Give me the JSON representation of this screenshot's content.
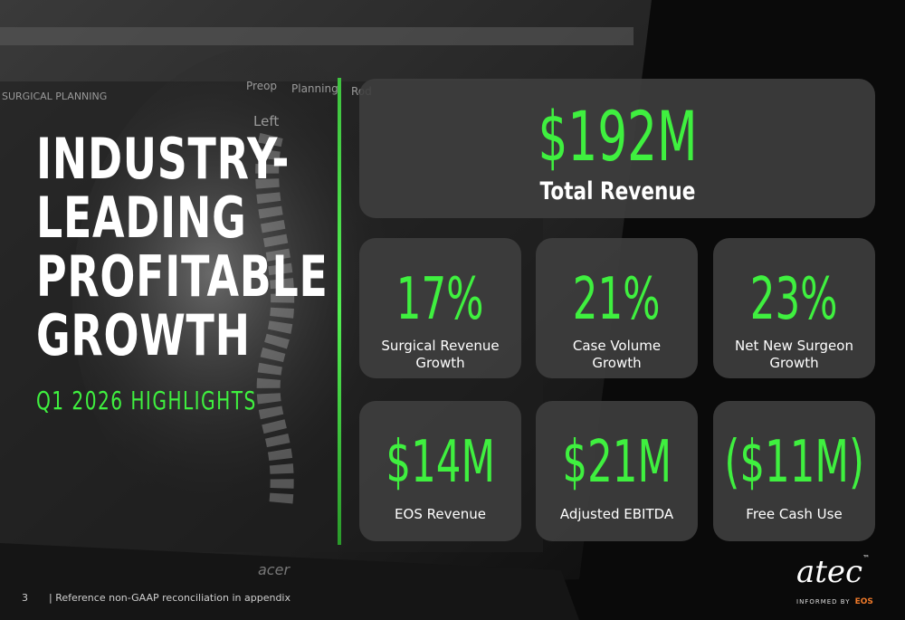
{
  "background": {
    "tabs": [
      "Preop",
      "Planning",
      "Rod"
    ],
    "panel_title": "SURGICAL PLANNING",
    "view_label": "Left",
    "brand": "acer"
  },
  "header": {
    "title_lines": [
      "INDUSTRY-",
      "LEADING",
      "PROFITABLE",
      "GROWTH"
    ],
    "subtitle": "Q1 2026 HIGHLIGHTS"
  },
  "hero": {
    "value": "$192M",
    "label": "Total Revenue"
  },
  "cards": [
    {
      "value": "17%",
      "label": "Surgical Revenue Growth"
    },
    {
      "value": "21%",
      "label": "Case Volume Growth"
    },
    {
      "value": "23%",
      "label": "Net New Surgeon Growth"
    },
    {
      "value": "$14M",
      "label": "EOS Revenue"
    },
    {
      "value": "$21M",
      "label": "Adjusted EBITDA"
    },
    {
      "value": "($11M)",
      "label": "Free Cash Use"
    }
  ],
  "footer": {
    "page": "3",
    "note": "| Reference non-GAAP reconciliation in appendix"
  },
  "logo": {
    "mark": "atec",
    "tm": "™",
    "tagline": "INFORMED BY",
    "tagline_brand": "EOS"
  }
}
